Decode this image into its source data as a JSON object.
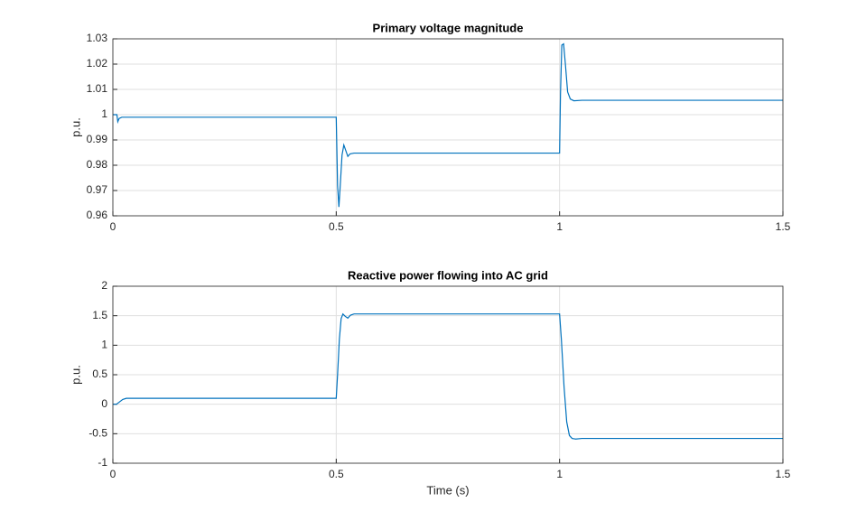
{
  "chart_data": [
    {
      "type": "line",
      "title": "Primary voltage magnitude",
      "ylabel": "p.u.",
      "x": [
        0,
        0.009,
        0.011,
        0.014,
        0.02,
        0.5,
        0.503,
        0.506,
        0.509,
        0.513,
        0.517,
        0.521,
        0.526,
        0.531,
        0.54,
        1.0,
        1.002,
        1.005,
        1.009,
        1.013,
        1.018,
        1.024,
        1.032,
        1.05,
        1.5
      ],
      "series": [
        {
          "name": "Primary voltage magnitude",
          "color": "#0072bd",
          "values": [
            1.0,
            1.0,
            0.9972,
            0.9985,
            0.999,
            0.999,
            0.972,
            0.9635,
            0.972,
            0.984,
            0.988,
            0.986,
            0.9835,
            0.9845,
            0.9848,
            0.9848,
            1.008,
            1.0275,
            1.028,
            1.02,
            1.009,
            1.0062,
            1.0055,
            1.0057,
            1.0057
          ]
        }
      ],
      "xlim": [
        0,
        1.5
      ],
      "xticks": [
        0,
        0.5,
        1,
        1.5
      ],
      "ylim": [
        0.96,
        1.03
      ],
      "yticks": [
        0.96,
        0.97,
        0.98,
        0.99,
        1,
        1.01,
        1.02,
        1.03
      ],
      "grid": true
    },
    {
      "type": "line",
      "title": "Reactive power flowing into AC grid",
      "ylabel": "p.u.",
      "xlabel": "Time (s)",
      "x": [
        0,
        0.008,
        0.015,
        0.022,
        0.03,
        0.04,
        0.5,
        0.503,
        0.507,
        0.511,
        0.515,
        0.52,
        0.526,
        0.532,
        0.54,
        1.0,
        1.004,
        1.01,
        1.016,
        1.022,
        1.028,
        1.036,
        1.05,
        1.5
      ],
      "series": [
        {
          "name": "Reactive power flowing into AC grid",
          "color": "#0072bd",
          "values": [
            0,
            0,
            0.04,
            0.08,
            0.1,
            0.1,
            0.1,
            0.5,
            1.1,
            1.45,
            1.53,
            1.49,
            1.46,
            1.51,
            1.53,
            1.53,
            1.1,
            0.3,
            -0.3,
            -0.53,
            -0.58,
            -0.59,
            -0.58,
            -0.58
          ]
        }
      ],
      "xlim": [
        0,
        1.5
      ],
      "xticks": [
        0,
        0.5,
        1,
        1.5
      ],
      "ylim": [
        -1,
        2
      ],
      "yticks": [
        -1,
        -0.5,
        0,
        0.5,
        1,
        1.5,
        2
      ],
      "grid": true
    }
  ]
}
